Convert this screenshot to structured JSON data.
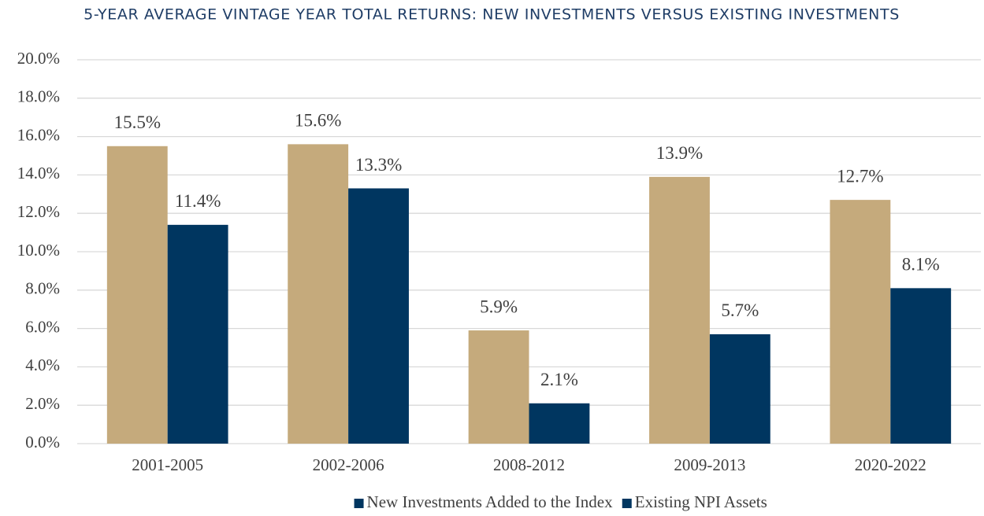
{
  "chart_data": {
    "type": "bar",
    "title": "5-YEAR AVERAGE VINTAGE YEAR TOTAL RETURNS: NEW INVESTMENTS VERSUS EXISTING INVESTMENTS",
    "categories": [
      "2001-2005",
      "2002-2006",
      "2008-2012",
      "2009-2013",
      "2020-2022"
    ],
    "series": [
      {
        "name": "New Investments Added to the Index",
        "color": "#c5aa7c",
        "values": [
          15.5,
          15.6,
          5.9,
          13.9,
          12.7
        ],
        "value_labels": [
          "15.5%",
          "15.6%",
          "5.9%",
          "13.9%",
          "12.7%"
        ]
      },
      {
        "name": "Existing NPI Assets",
        "color": "#003660",
        "values": [
          11.4,
          13.3,
          2.1,
          5.7,
          8.1
        ],
        "value_labels": [
          "11.4%",
          "13.3%",
          "2.1%",
          "5.7%",
          "8.1%"
        ]
      }
    ],
    "ylim": [
      0,
      20
    ],
    "yticks": [
      {
        "value": 0,
        "label": "0.0%"
      },
      {
        "value": 2,
        "label": "2.0%"
      },
      {
        "value": 4,
        "label": "4.0%"
      },
      {
        "value": 6,
        "label": "6.0%"
      },
      {
        "value": 8,
        "label": "8.0%"
      },
      {
        "value": 10,
        "label": "10.0%"
      },
      {
        "value": 12,
        "label": "12.0%"
      },
      {
        "value": 14,
        "label": "14.0%"
      },
      {
        "value": 16,
        "label": "16.0%"
      },
      {
        "value": 18,
        "label": "18.0%"
      },
      {
        "value": 20,
        "label": "20.0%"
      }
    ],
    "grid": true,
    "legend": "bottom",
    "legend_marker_color": "#003660"
  }
}
